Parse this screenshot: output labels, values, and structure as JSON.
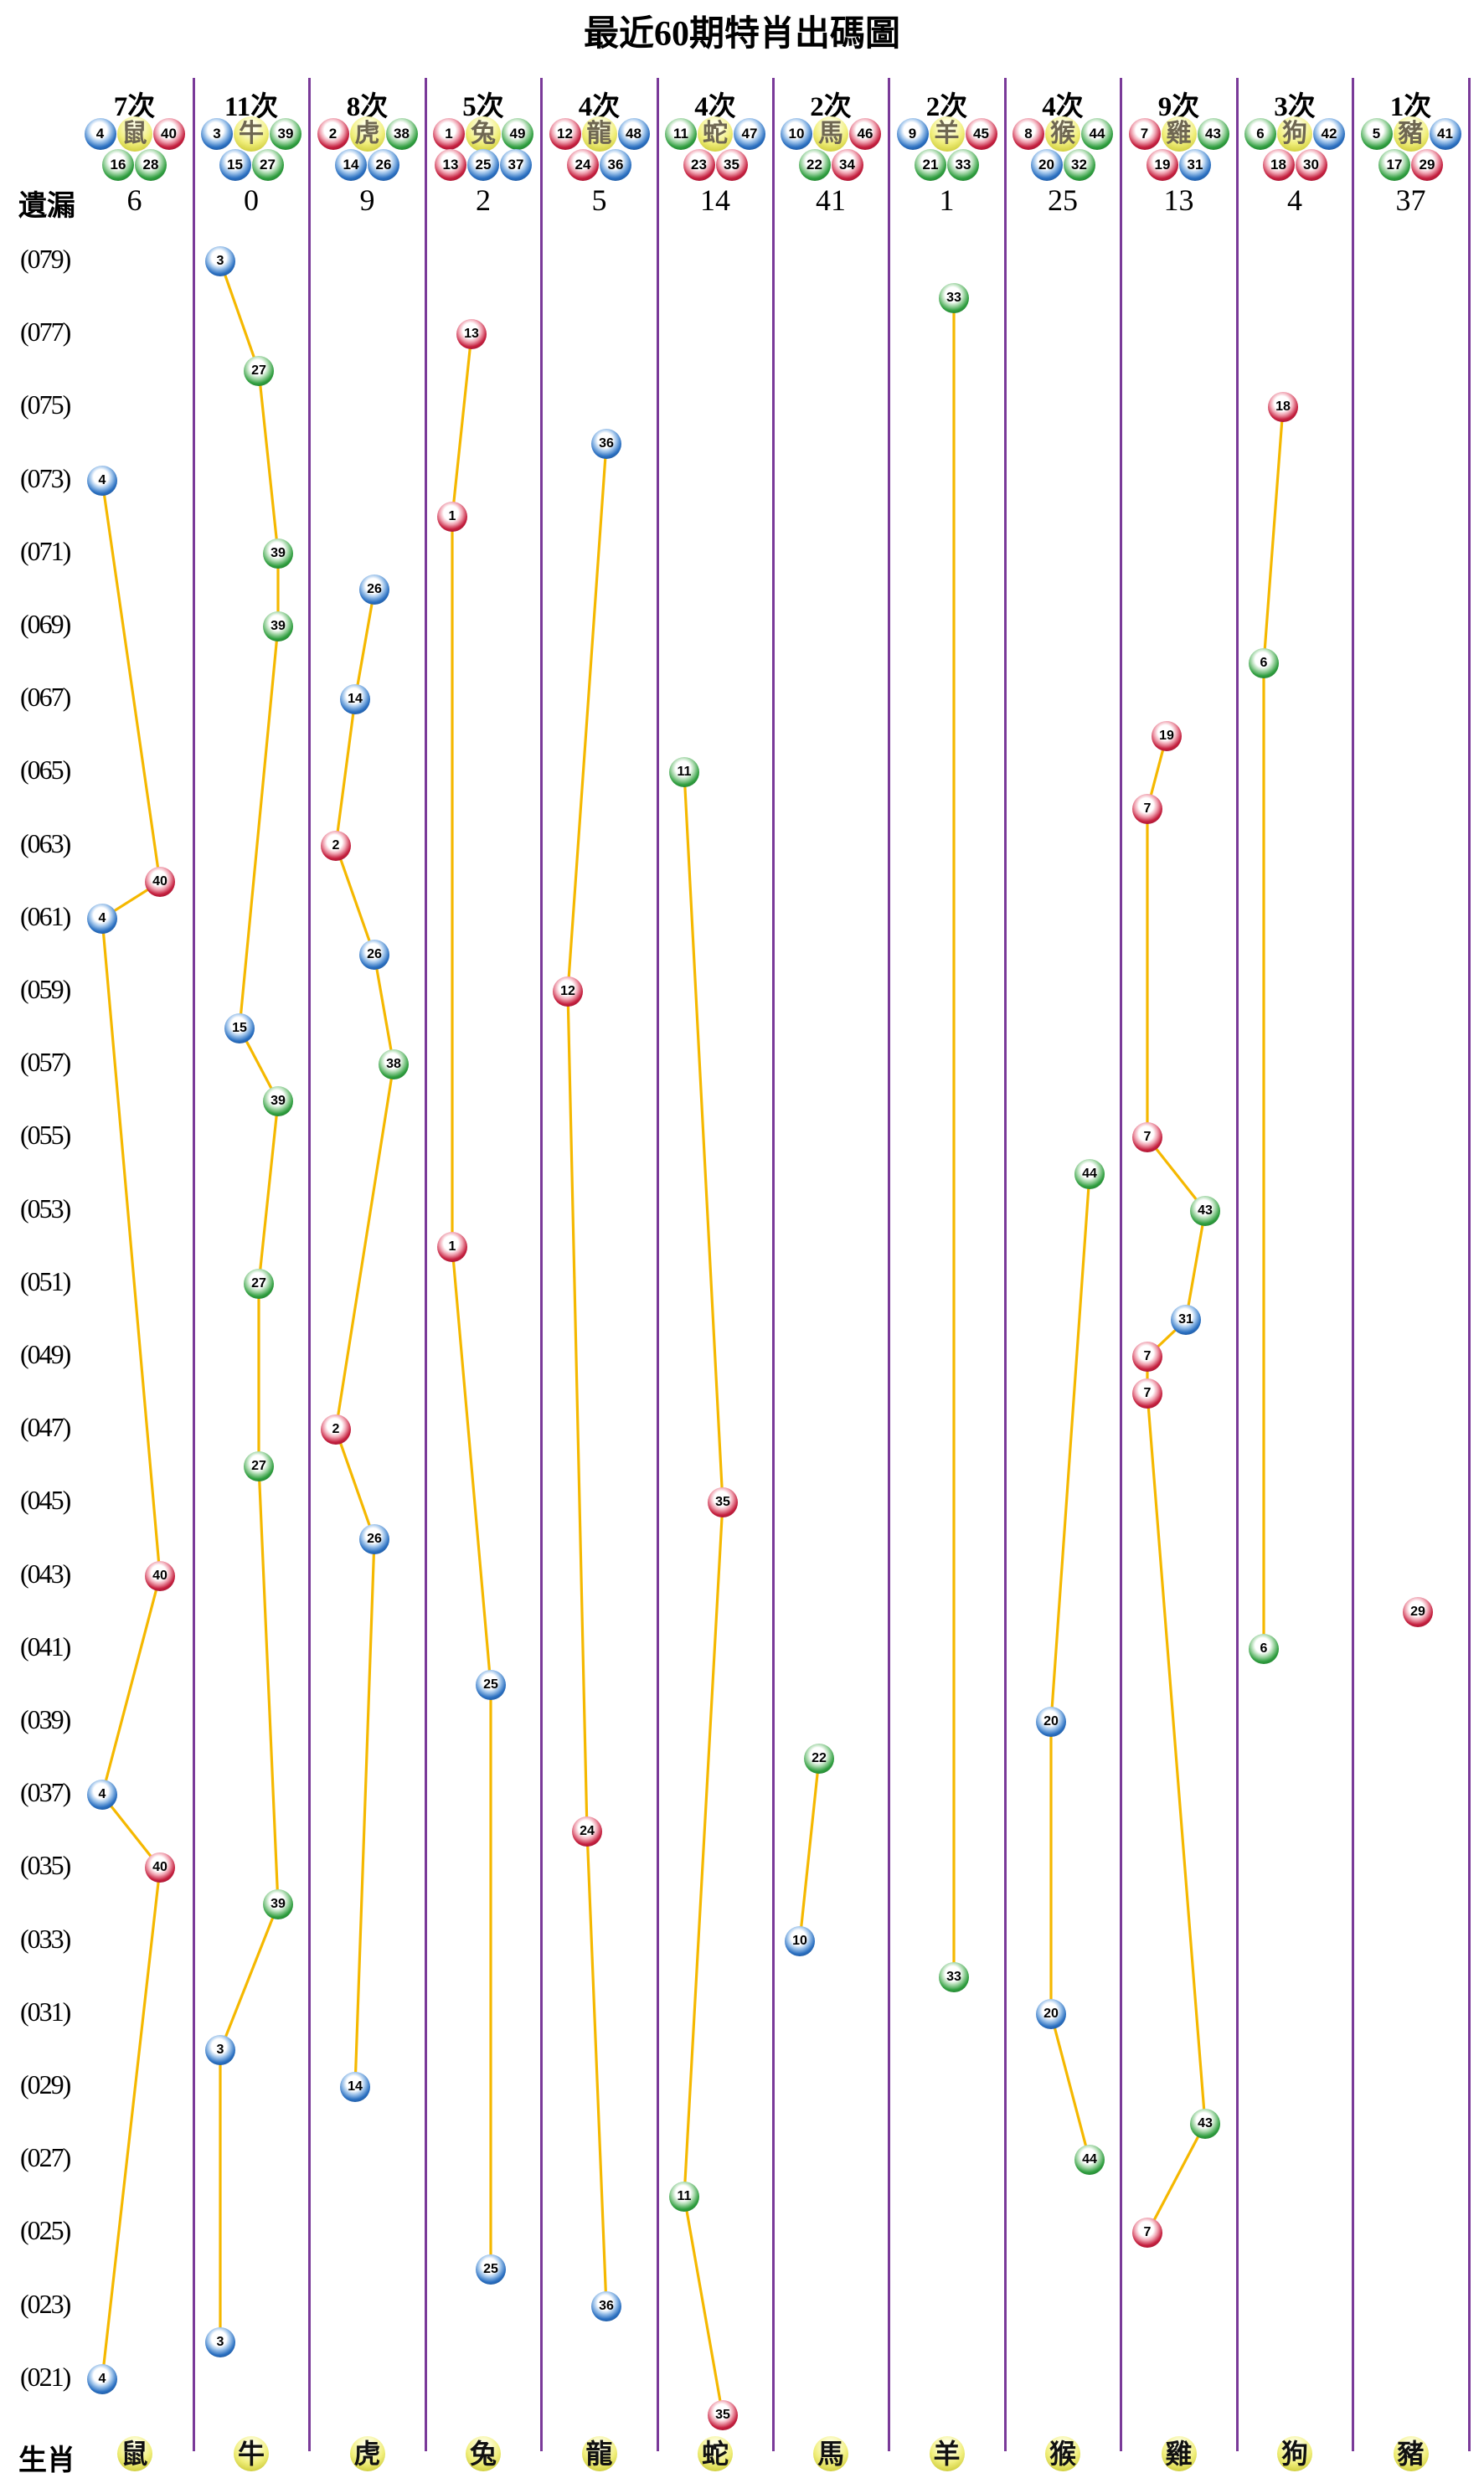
{
  "title": "最近60期特肖出碼圖",
  "labels": {
    "miss_row": "遺漏",
    "zodiac_row": "生肖"
  },
  "colors": {
    "red_ball": "#c41f3e",
    "blue_ball": "#2a6fc0",
    "green_ball": "#2f9e3f",
    "yellow_ball": "#e8e657",
    "trend_line": "#f5b800",
    "column_divider": "#7a3a99",
    "header_char": "#6f6752",
    "text": "#000000"
  },
  "ball_color_groups": {
    "red": [
      1,
      2,
      7,
      8,
      12,
      13,
      18,
      19,
      23,
      24,
      29,
      30,
      34,
      35,
      40,
      45,
      46
    ],
    "blue": [
      3,
      4,
      9,
      10,
      14,
      15,
      20,
      25,
      26,
      31,
      36,
      37,
      41,
      42,
      47,
      48
    ],
    "green": [
      5,
      6,
      11,
      16,
      17,
      21,
      22,
      27,
      28,
      32,
      33,
      38,
      39,
      43,
      44,
      49
    ]
  },
  "axis": {
    "top_period": 79,
    "bottom_period": 20,
    "period_labels": [
      "(079)",
      "(077)",
      "(075)",
      "(073)",
      "(071)",
      "(069)",
      "(067)",
      "(065)",
      "(063)",
      "(061)",
      "(059)",
      "(057)",
      "(055)",
      "(053)",
      "(051)",
      "(049)",
      "(047)",
      "(045)",
      "(043)",
      "(041)",
      "(039)",
      "(037)",
      "(035)",
      "(033)",
      "(031)",
      "(029)",
      "(027)",
      "(025)",
      "(023)",
      "(021)"
    ]
  },
  "chart_data": {
    "type": "scatter",
    "title": "最近60期特肖出碼圖",
    "x_categories": [
      "鼠",
      "牛",
      "虎",
      "兔",
      "龍",
      "蛇",
      "馬",
      "羊",
      "猴",
      "雞",
      "狗",
      "豬"
    ],
    "y_axis": {
      "top": 79,
      "bottom": 20,
      "tick_step": 2,
      "note": "periods, newest (079) at top, 60 draws total down to 020"
    },
    "grid": "vertical purple column dividers",
    "legend_position": "none",
    "series": [
      {
        "name": "鼠",
        "times_label": "7次",
        "miss": "6",
        "numbers": [
          4,
          16,
          28,
          40
        ],
        "draws": [
          {
            "period": 73,
            "num": 4
          },
          {
            "period": 62,
            "num": 40
          },
          {
            "period": 61,
            "num": 4
          },
          {
            "period": 43,
            "num": 40
          },
          {
            "period": 37,
            "num": 4
          },
          {
            "period": 35,
            "num": 40
          },
          {
            "period": 21,
            "num": 4
          }
        ]
      },
      {
        "name": "牛",
        "times_label": "11次",
        "miss": "0",
        "numbers": [
          3,
          15,
          27,
          39
        ],
        "draws": [
          {
            "period": 79,
            "num": 3
          },
          {
            "period": 76,
            "num": 27
          },
          {
            "period": 71,
            "num": 39
          },
          {
            "period": 69,
            "num": 39
          },
          {
            "period": 58,
            "num": 15
          },
          {
            "period": 56,
            "num": 39
          },
          {
            "period": 51,
            "num": 27
          },
          {
            "period": 46,
            "num": 27
          },
          {
            "period": 34,
            "num": 39
          },
          {
            "period": 30,
            "num": 3
          },
          {
            "period": 22,
            "num": 3
          }
        ]
      },
      {
        "name": "虎",
        "times_label": "8次",
        "miss": "9",
        "numbers": [
          2,
          14,
          26,
          38
        ],
        "draws": [
          {
            "period": 70,
            "num": 26
          },
          {
            "period": 67,
            "num": 14
          },
          {
            "period": 63,
            "num": 2
          },
          {
            "period": 60,
            "num": 26
          },
          {
            "period": 57,
            "num": 38
          },
          {
            "period": 47,
            "num": 2
          },
          {
            "period": 44,
            "num": 26
          },
          {
            "period": 29,
            "num": 14
          }
        ]
      },
      {
        "name": "兔",
        "times_label": "5次",
        "miss": "2",
        "numbers": [
          1,
          13,
          25,
          37,
          49
        ],
        "draws": [
          {
            "period": 77,
            "num": 13
          },
          {
            "period": 72,
            "num": 1
          },
          {
            "period": 52,
            "num": 1
          },
          {
            "period": 40,
            "num": 25
          },
          {
            "period": 24,
            "num": 25
          }
        ]
      },
      {
        "name": "龍",
        "times_label": "4次",
        "miss": "5",
        "numbers": [
          12,
          24,
          36,
          48
        ],
        "draws": [
          {
            "period": 74,
            "num": 36
          },
          {
            "period": 59,
            "num": 12
          },
          {
            "period": 36,
            "num": 24
          },
          {
            "period": 23,
            "num": 36
          }
        ]
      },
      {
        "name": "蛇",
        "times_label": "4次",
        "miss": "14",
        "numbers": [
          11,
          23,
          35,
          47
        ],
        "draws": [
          {
            "period": 65,
            "num": 11
          },
          {
            "period": 45,
            "num": 35
          },
          {
            "period": 26,
            "num": 11
          },
          {
            "period": 20,
            "num": 35
          }
        ]
      },
      {
        "name": "馬",
        "times_label": "2次",
        "miss": "41",
        "numbers": [
          10,
          22,
          34,
          46
        ],
        "draws": [
          {
            "period": 38,
            "num": 22
          },
          {
            "period": 33,
            "num": 10
          }
        ]
      },
      {
        "name": "羊",
        "times_label": "2次",
        "miss": "1",
        "numbers": [
          9,
          21,
          33,
          45
        ],
        "draws": [
          {
            "period": 78,
            "num": 33
          },
          {
            "period": 32,
            "num": 33
          }
        ]
      },
      {
        "name": "猴",
        "times_label": "4次",
        "miss": "25",
        "numbers": [
          8,
          20,
          32,
          44
        ],
        "draws": [
          {
            "period": 54,
            "num": 44
          },
          {
            "period": 39,
            "num": 20
          },
          {
            "period": 31,
            "num": 20
          },
          {
            "period": 27,
            "num": 44
          }
        ]
      },
      {
        "name": "雞",
        "times_label": "9次",
        "miss": "13",
        "numbers": [
          7,
          19,
          31,
          43
        ],
        "draws": [
          {
            "period": 66,
            "num": 19
          },
          {
            "period": 64,
            "num": 7
          },
          {
            "period": 55,
            "num": 7
          },
          {
            "period": 53,
            "num": 43
          },
          {
            "period": 50,
            "num": 31
          },
          {
            "period": 49,
            "num": 7
          },
          {
            "period": 48,
            "num": 7
          },
          {
            "period": 28,
            "num": 43
          },
          {
            "period": 25,
            "num": 7
          }
        ]
      },
      {
        "name": "狗",
        "times_label": "3次",
        "miss": "4",
        "numbers": [
          6,
          18,
          30,
          42
        ],
        "draws": [
          {
            "period": 75,
            "num": 18
          },
          {
            "period": 68,
            "num": 6
          },
          {
            "period": 41,
            "num": 6
          }
        ]
      },
      {
        "name": "豬",
        "times_label": "1次",
        "miss": "37",
        "numbers": [
          5,
          17,
          29,
          41
        ],
        "draws": [
          {
            "period": 42,
            "num": 29
          }
        ]
      }
    ]
  }
}
